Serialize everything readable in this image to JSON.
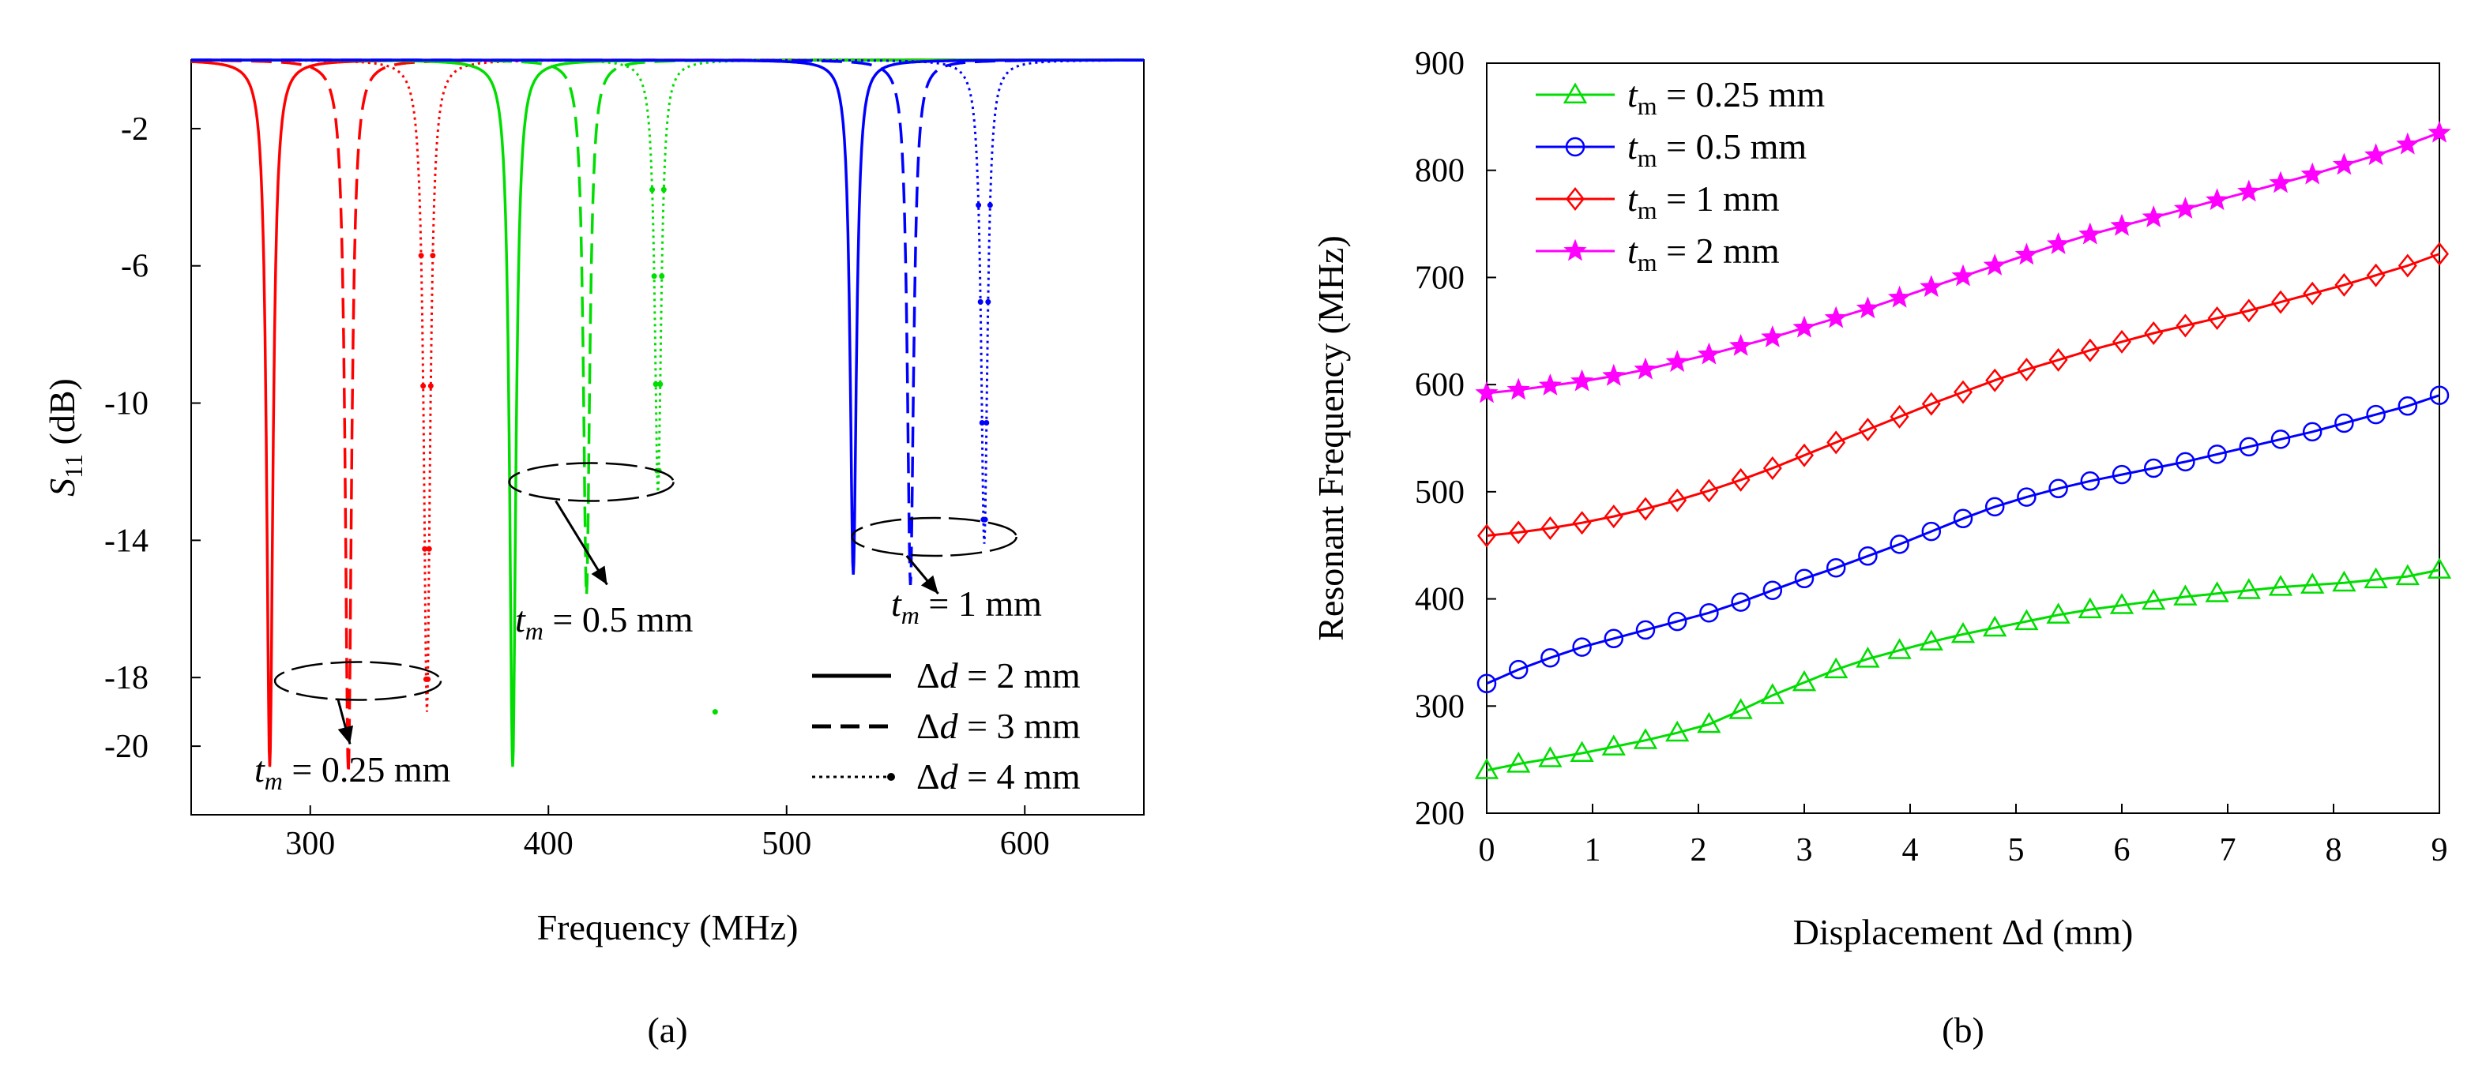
{
  "chart_data": [
    {
      "type": "line",
      "panel": "(a)",
      "xlabel": "Frequency (MHz)",
      "ylabel_main": "S",
      "ylabel_sub": "11",
      "ylabel_rest": " (dB)",
      "xlim": [
        250,
        650
      ],
      "ylim": [
        -22,
        0
      ],
      "xticks": [
        300,
        400,
        500,
        600
      ],
      "yticks": [
        -2,
        -6,
        -10,
        -14,
        -18,
        -20
      ],
      "xticklabels": [
        "300",
        "400",
        "500",
        "600"
      ],
      "yticklabels": [
        "-2",
        "-6",
        "-10",
        "-14",
        "-18",
        "-20"
      ],
      "series": [
        {
          "group": "tm025",
          "color": "#ff0000",
          "style": "solid",
          "center": 283,
          "depth": -20.6,
          "width": 1.6
        },
        {
          "group": "tm025",
          "color": "#ff0000",
          "style": "dashed",
          "center": 316,
          "depth": -20.8,
          "width": 1.6
        },
        {
          "group": "tm025",
          "color": "#ff0000",
          "style": "dotted",
          "center": 349,
          "depth": -19.0,
          "width": 1.6
        },
        {
          "group": "tm05",
          "color": "#00dd00",
          "style": "solid",
          "center": 385,
          "depth": -20.6,
          "width": 1.6
        },
        {
          "group": "tm05",
          "color": "#00dd00",
          "style": "dashed",
          "center": 416,
          "depth": -15.6,
          "width": 1.6
        },
        {
          "group": "tm05",
          "color": "#00dd00",
          "style": "dotted",
          "center": 446,
          "depth": -12.6,
          "width": 1.6
        },
        {
          "group": "tm1",
          "color": "#0000ff",
          "style": "solid",
          "center": 528,
          "depth": -15.0,
          "width": 1.6
        },
        {
          "group": "tm1",
          "color": "#0000ff",
          "style": "dashed",
          "center": 552,
          "depth": -15.3,
          "width": 1.6
        },
        {
          "group": "tm1",
          "color": "#0000ff",
          "style": "dotted",
          "center": 583,
          "depth": -14.1,
          "width": 1.6
        }
      ],
      "annotations": {
        "tm025_italic": "t",
        "tm025_sub": "m",
        "tm025_rest": " = 0.25 mm",
        "tm05_italic": "t",
        "tm05_sub": "m",
        "tm05_rest": " = 0.5 mm",
        "tm1_italic": "t",
        "tm1_sub": "m",
        "tm1_rest": " = 1 mm"
      },
      "legend": [
        {
          "style": "solid",
          "prefix": "Δ",
          "italic": "d",
          "rest": " = 2 mm"
        },
        {
          "style": "dashed",
          "prefix": "Δ",
          "italic": "d",
          "rest": " = 3 mm"
        },
        {
          "style": "dotted",
          "prefix": "Δ",
          "italic": "d",
          "rest": " = 4 mm"
        }
      ]
    },
    {
      "type": "line",
      "panel": "(b)",
      "xlabel": "Displacement Δd (mm)",
      "ylabel": "Resonant Frequency (MHz)",
      "xlim": [
        0,
        9
      ],
      "ylim": [
        200,
        900
      ],
      "xticks": [
        0,
        1,
        2,
        3,
        4,
        5,
        6,
        7,
        8,
        9
      ],
      "yticks": [
        200,
        300,
        400,
        500,
        600,
        700,
        800,
        900
      ],
      "xticklabels": [
        "0",
        "1",
        "2",
        "3",
        "4",
        "5",
        "6",
        "7",
        "8",
        "9"
      ],
      "yticklabels": [
        "200",
        "300",
        "400",
        "500",
        "600",
        "700",
        "800",
        "900"
      ],
      "x": [
        0,
        0.3,
        0.6,
        0.9,
        1.2,
        1.5,
        1.8,
        2.1,
        2.4,
        2.7,
        3.0,
        3.3,
        3.6,
        3.9,
        4.2,
        4.5,
        4.8,
        5.1,
        5.4,
        5.7,
        6.0,
        6.3,
        6.6,
        6.9,
        7.2,
        7.5,
        7.8,
        8.1,
        8.4,
        8.7,
        9.0
      ],
      "series": [
        {
          "name_italic": "t",
          "name_sub": "m",
          "name_rest": " = 0.25 mm",
          "color": "#00dd00",
          "marker": "triangle",
          "values": [
            240,
            246,
            251,
            256,
            262,
            268,
            275,
            283,
            296,
            310,
            322,
            334,
            344,
            352,
            360,
            367,
            373,
            379,
            385,
            390,
            394,
            398,
            402,
            405,
            408,
            411,
            413,
            415,
            418,
            421,
            427
          ]
        },
        {
          "name_italic": "t",
          "name_sub": "m",
          "name_rest": " = 0.5 mm",
          "color": "#0000ff",
          "marker": "circle",
          "values": [
            321,
            334,
            345,
            355,
            363,
            371,
            379,
            387,
            397,
            408,
            419,
            429,
            440,
            451,
            463,
            475,
            486,
            495,
            503,
            510,
            516,
            522,
            528,
            535,
            542,
            549,
            556,
            564,
            572,
            580,
            590
          ]
        },
        {
          "name_italic": "t",
          "name_sub": "m",
          "name_rest": " = 1 mm",
          "color": "#ff0000",
          "marker": "diamond",
          "values": [
            459,
            462,
            466,
            471,
            477,
            484,
            492,
            501,
            511,
            522,
            534,
            546,
            558,
            570,
            582,
            593,
            604,
            614,
            623,
            632,
            640,
            648,
            655,
            662,
            669,
            677,
            685,
            693,
            702,
            711,
            722
          ]
        },
        {
          "name_italic": "t",
          "name_sub": "m",
          "name_rest": " = 2 mm",
          "color": "#ff00ff",
          "marker": "star",
          "values": [
            592,
            595,
            599,
            603,
            608,
            614,
            621,
            628,
            636,
            644,
            653,
            662,
            671,
            681,
            691,
            701,
            711,
            721,
            731,
            740,
            748,
            756,
            764,
            772,
            780,
            788,
            796,
            805,
            814,
            824,
            835
          ]
        }
      ]
    }
  ]
}
